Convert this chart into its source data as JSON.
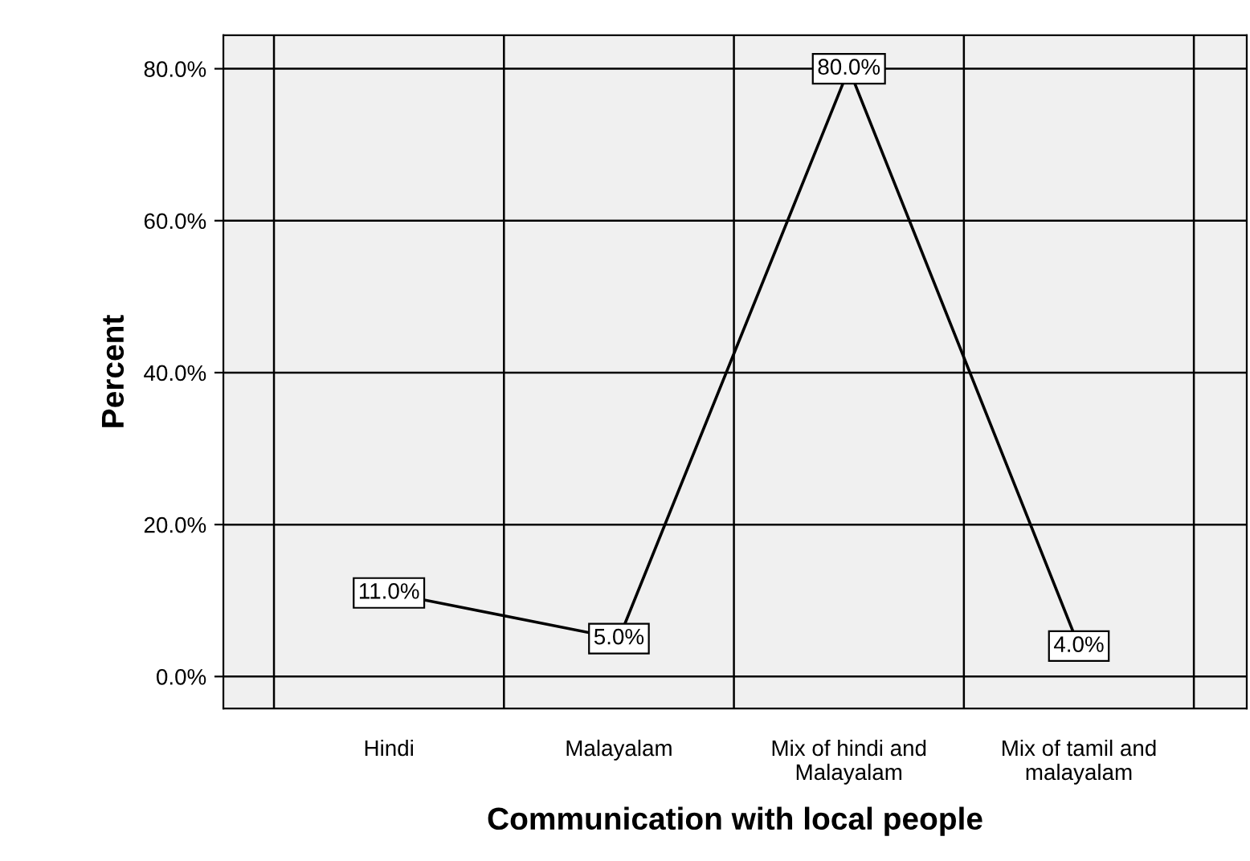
{
  "chart_data": {
    "type": "line",
    "xlabel": "Communication with local people",
    "ylabel": "Percent",
    "categories": [
      "Hindi",
      "Malayalam",
      "Mix of hindi and\nMalayalam",
      "Mix of tamil and\nmalayalam"
    ],
    "values": [
      11.0,
      5.0,
      80.0,
      4.0
    ],
    "value_labels": [
      "11.0%",
      "5.0%",
      "80.0%",
      "4.0%"
    ],
    "color": "#000000",
    "ylim": [
      -4.2,
      84.4
    ],
    "yticks": [
      {
        "value": 0,
        "label": "0.0%"
      },
      {
        "value": 20,
        "label": "20.0%"
      },
      {
        "value": 40,
        "label": "40.0%"
      },
      {
        "value": 60,
        "label": "60.0%"
      },
      {
        "value": 80,
        "label": "80.0%"
      }
    ],
    "grid": true,
    "line_style": "solid"
  }
}
